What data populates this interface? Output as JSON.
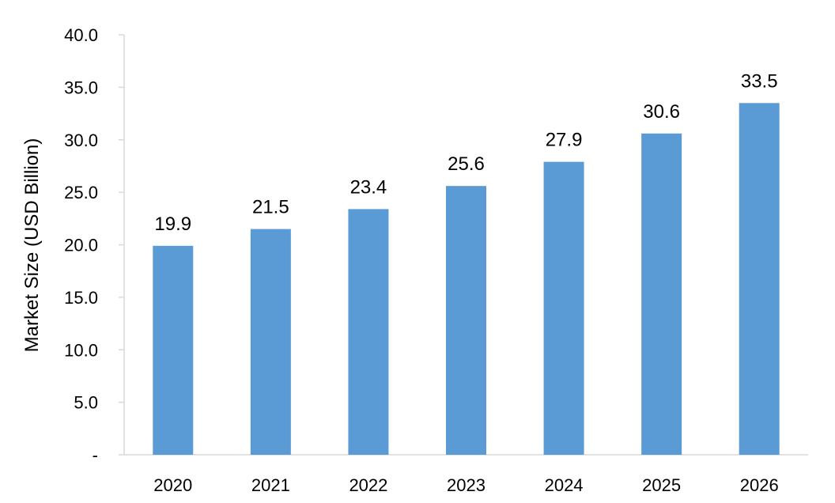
{
  "chart_data": {
    "type": "bar",
    "categories": [
      "2020",
      "2021",
      "2022",
      "2023",
      "2024",
      "2025",
      "2026"
    ],
    "values": [
      19.9,
      21.5,
      23.4,
      25.6,
      27.9,
      30.6,
      33.5
    ],
    "data_labels": [
      "19.9",
      "21.5",
      "23.4",
      "25.6",
      "27.9",
      "30.6",
      "33.5"
    ],
    "ylabel": "Market Size (USD Billion)",
    "xlabel": "",
    "ylim": [
      0,
      40
    ],
    "yticks": [
      0,
      5,
      10,
      15,
      20,
      25,
      30,
      35,
      40
    ],
    "ytick_labels": [
      "-",
      "5.0",
      "10.0",
      "15.0",
      "20.0",
      "25.0",
      "30.0",
      "35.0",
      "40.0"
    ],
    "grid": false,
    "legend": "none",
    "bar_color": "#5b9bd5",
    "axis_color": "#d9d9d9"
  }
}
